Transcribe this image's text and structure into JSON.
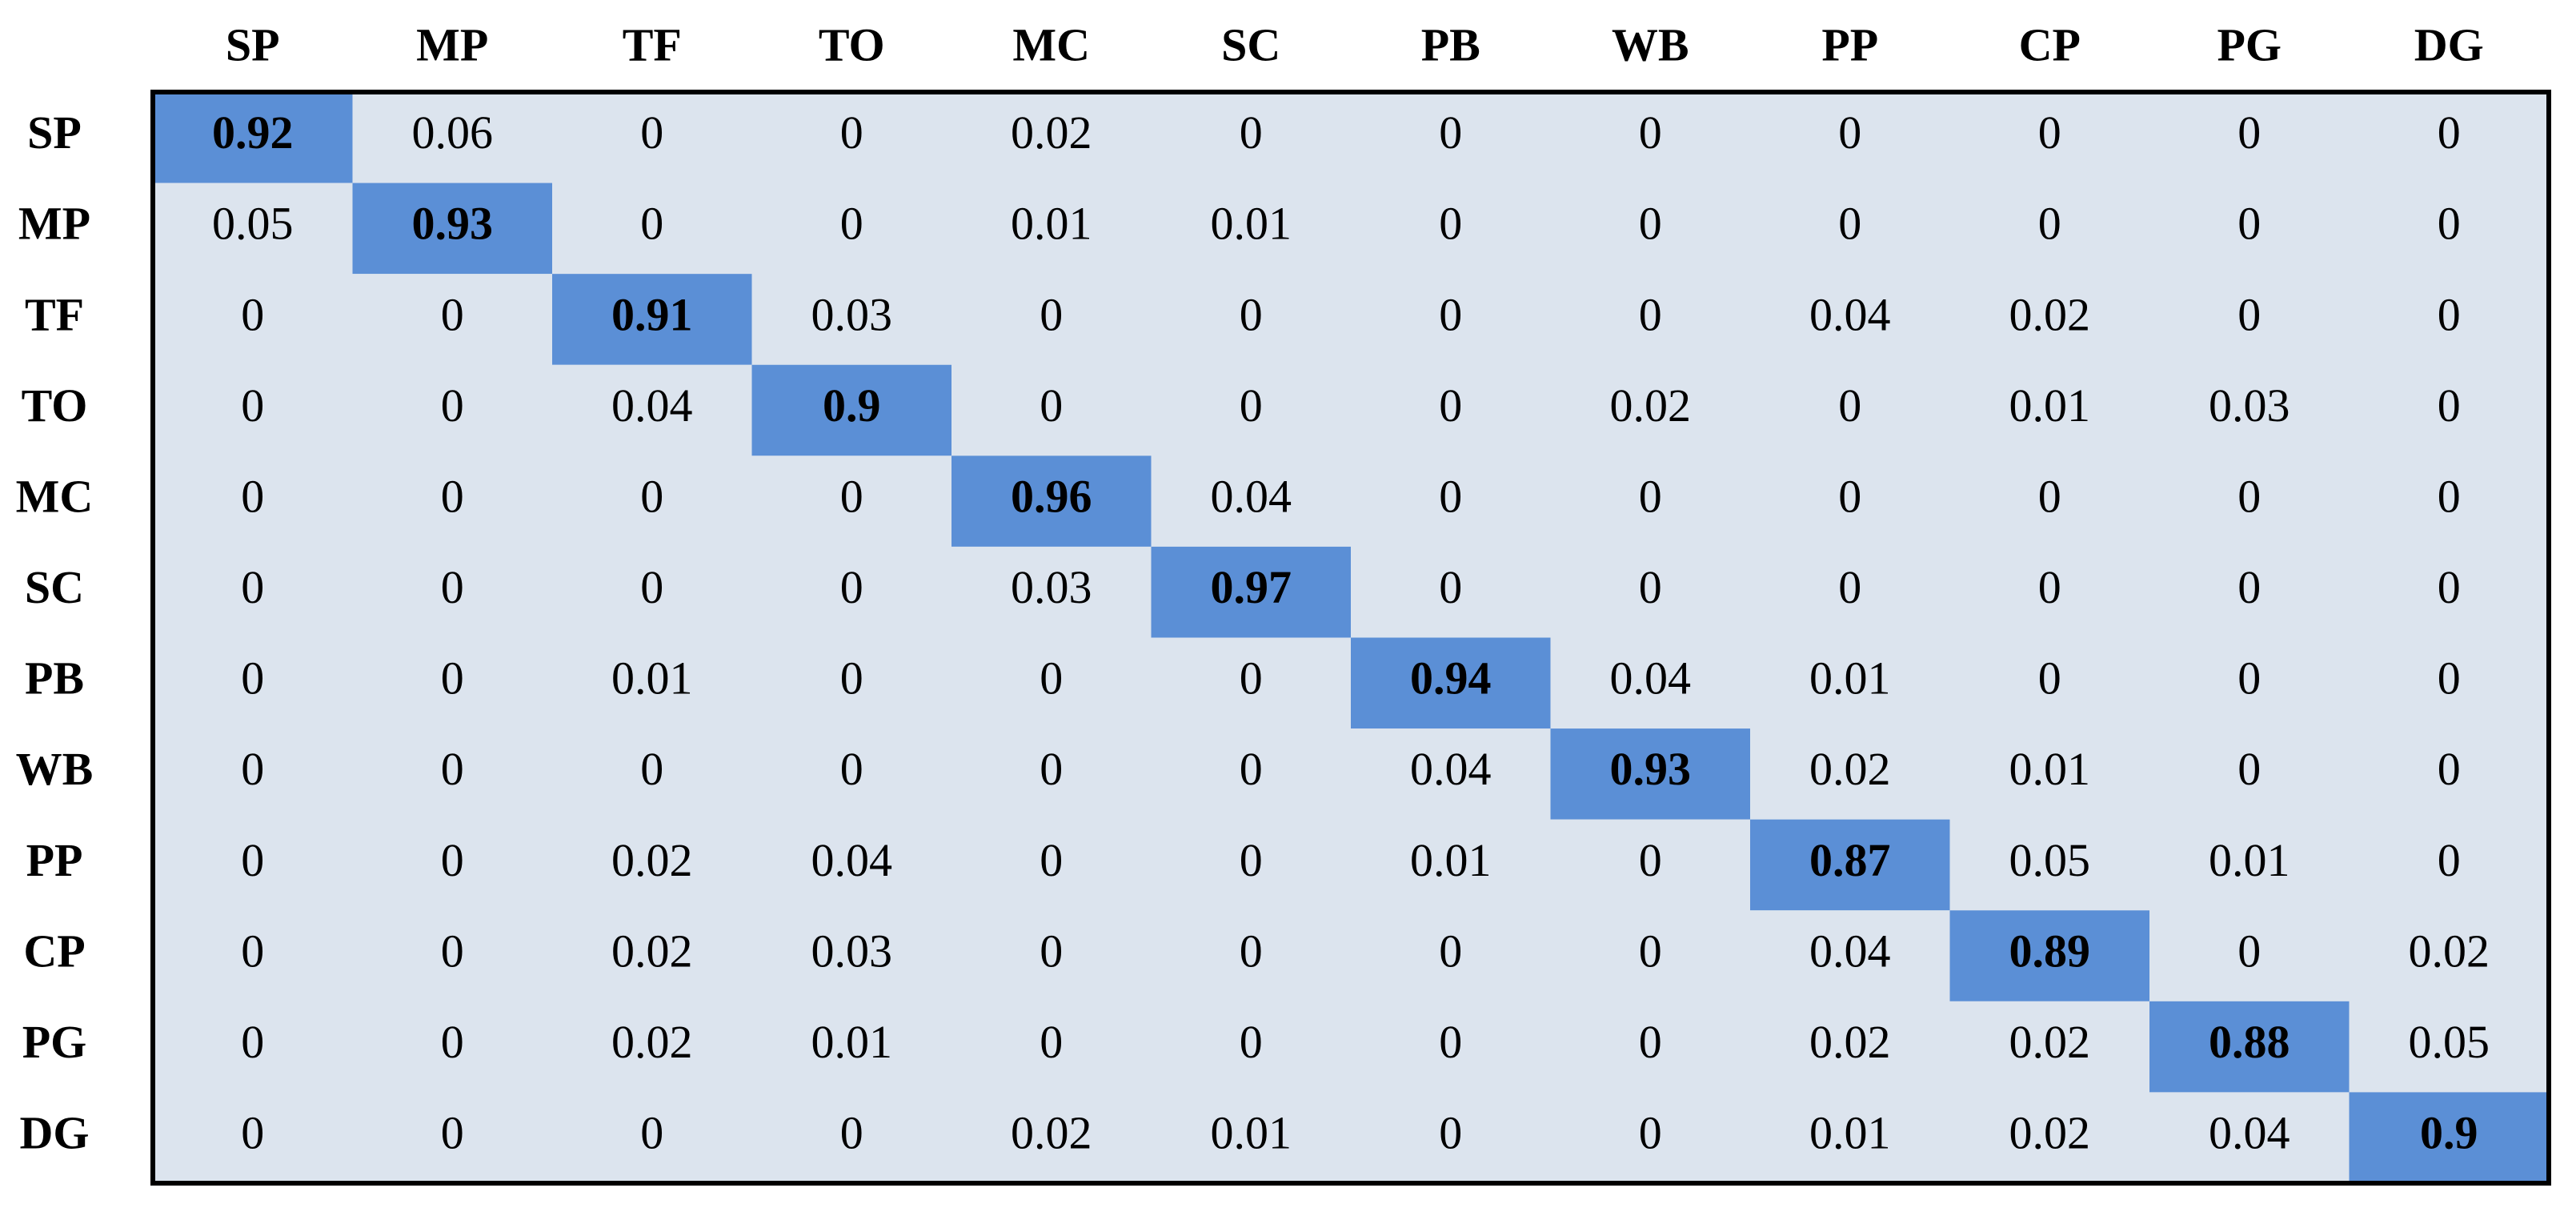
{
  "chart_data": {
    "type": "heatmap",
    "categories": [
      "SP",
      "MP",
      "TF",
      "TO",
      "MC",
      "SC",
      "PB",
      "WB",
      "PP",
      "CP",
      "PG",
      "DG"
    ],
    "rows": [
      "SP",
      "MP",
      "TF",
      "TO",
      "MC",
      "SC",
      "PB",
      "WB",
      "PP",
      "CP",
      "PG",
      "DG"
    ],
    "values": [
      [
        0.92,
        0.06,
        0,
        0,
        0.02,
        0,
        0,
        0,
        0,
        0,
        0,
        0
      ],
      [
        0.05,
        0.93,
        0,
        0,
        0.01,
        0.01,
        0,
        0,
        0,
        0,
        0,
        0
      ],
      [
        0,
        0,
        0.91,
        0.03,
        0,
        0,
        0,
        0,
        0.04,
        0.02,
        0,
        0
      ],
      [
        0,
        0,
        0.04,
        0.9,
        0,
        0,
        0,
        0.02,
        0,
        0.01,
        0.03,
        0
      ],
      [
        0,
        0,
        0,
        0,
        0.96,
        0.04,
        0,
        0,
        0,
        0,
        0,
        0
      ],
      [
        0,
        0,
        0,
        0,
        0.03,
        0.97,
        0,
        0,
        0,
        0,
        0,
        0
      ],
      [
        0,
        0,
        0.01,
        0,
        0,
        0,
        0.94,
        0.04,
        0.01,
        0,
        0,
        0
      ],
      [
        0,
        0,
        0,
        0,
        0,
        0,
        0.04,
        0.93,
        0.02,
        0.01,
        0,
        0
      ],
      [
        0,
        0,
        0.02,
        0.04,
        0,
        0,
        0.01,
        0,
        0.87,
        0.05,
        0.01,
        0
      ],
      [
        0,
        0,
        0.02,
        0.03,
        0,
        0,
        0,
        0,
        0.04,
        0.89,
        0,
        0.02
      ],
      [
        0,
        0,
        0.02,
        0.01,
        0,
        0,
        0,
        0,
        0.02,
        0.02,
        0.88,
        0.05
      ],
      [
        0,
        0,
        0,
        0,
        0.02,
        0.01,
        0,
        0,
        0.01,
        0.02,
        0.04,
        0.9
      ]
    ],
    "background_color": "#dce4ee",
    "diagonal_color": "#5b8fd6"
  }
}
